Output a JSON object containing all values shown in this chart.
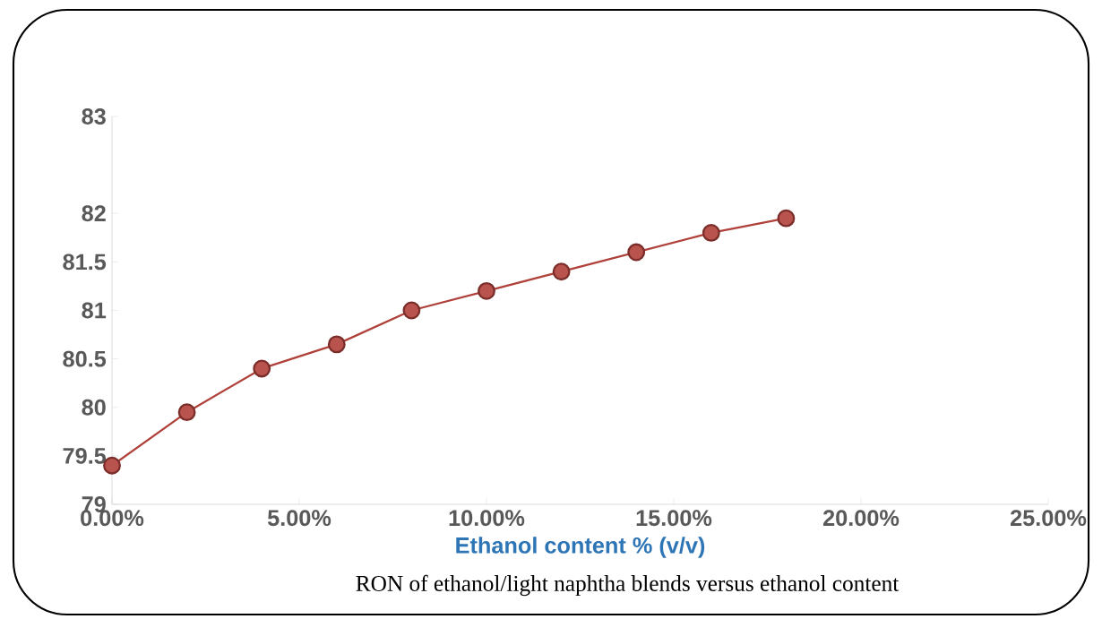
{
  "chart_data": {
    "type": "line",
    "x": [
      0,
      2,
      4,
      6,
      8,
      10,
      12,
      14,
      16,
      18
    ],
    "series": [
      {
        "color": "#b0403a",
        "values": [
          79.4,
          79.95,
          80.4,
          80.65,
          81.0,
          81.2,
          81.4,
          81.6,
          81.8,
          81.95
        ]
      }
    ],
    "xlabel": "Ethanol content % (v/v)",
    "annotations": [
      "RON of ethanol/light naphtha blends versus ethanol content"
    ],
    "xlim": [
      0,
      25
    ],
    "xticks": [
      {
        "value": 0,
        "label": "0.00%"
      },
      {
        "value": 5,
        "label": "5.00%"
      },
      {
        "value": 10,
        "label": "10.00%"
      },
      {
        "value": 15,
        "label": "15.00%"
      },
      {
        "value": 20,
        "label": "20.00%"
      },
      {
        "value": 25,
        "label": "25.00%"
      }
    ],
    "ylim": [
      79,
      83
    ],
    "yticks": [
      79,
      79.5,
      80,
      80.5,
      81,
      81.5,
      82,
      83
    ],
    "marker": "circle",
    "line_style": "solid",
    "grid": false
  }
}
